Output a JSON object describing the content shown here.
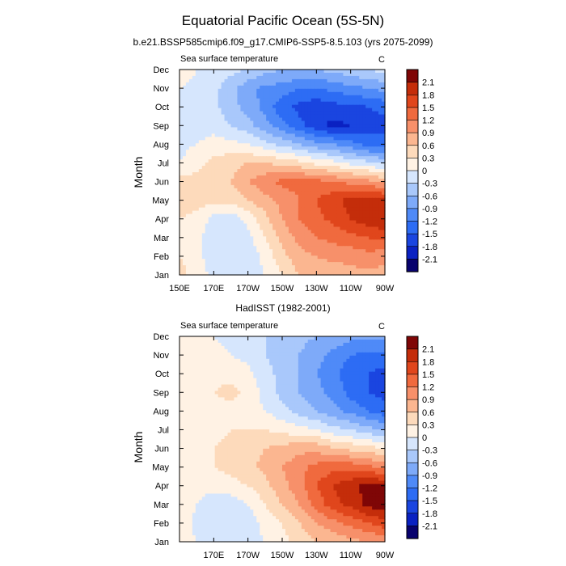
{
  "figure": {
    "title": "Equatorial Pacific Ocean (5S-5N)",
    "subtitle": "b.e21.BSSP585cmip6.f09_g17.CMIP6-SSP5-8.5.103 (yrs 2075-2099)"
  },
  "colors": {
    "palette": [
      "#08026e",
      "#0a21c2",
      "#1a45e0",
      "#2d6cf4",
      "#4f8af8",
      "#7eaaf9",
      "#a9c8fb",
      "#d6e6fd",
      "#fff2e4",
      "#fddabb",
      "#fbb690",
      "#f7906a",
      "#f06a3e",
      "#e0461c",
      "#c42d0a",
      "#7f0606"
    ]
  },
  "chart_data": [
    {
      "type": "heatmap",
      "title": "",
      "left_label": "Sea surface temperature",
      "right_label": "C",
      "xlabel": "",
      "ylabel": "Month",
      "x": [
        150,
        160,
        170,
        180,
        190,
        200,
        210,
        220,
        230,
        240,
        250,
        260,
        270
      ],
      "x_units": "degrees east (0-360)",
      "xticks": [
        {
          "value": 150,
          "label": "150E"
        },
        {
          "value": 170,
          "label": "170E"
        },
        {
          "value": 190,
          "label": "170W"
        },
        {
          "value": 210,
          "label": "150W"
        },
        {
          "value": 230,
          "label": "130W"
        },
        {
          "value": 250,
          "label": "110W"
        },
        {
          "value": 270,
          "label": "90W"
        }
      ],
      "xlim": [
        150,
        270
      ],
      "months": [
        "Jan",
        "Feb",
        "Mar",
        "Apr",
        "May",
        "Jun",
        "Jul",
        "Aug",
        "Sep",
        "Oct",
        "Nov",
        "Dec"
      ],
      "colorbar": {
        "levels": [
          2.1,
          1.8,
          1.5,
          1.2,
          0.9,
          0.6,
          0.3,
          0,
          -0.3,
          -0.6,
          -0.9,
          -1.2,
          -1.5,
          -1.8,
          -2.1
        ],
        "range": [
          -2.4,
          2.4
        ]
      },
      "values": [
        [
          0.4,
          0.2,
          -0.1,
          -0.2,
          -0.2,
          0.0,
          0.3,
          0.6,
          0.7,
          0.7,
          0.8,
          0.8,
          0.8
        ],
        [
          0.3,
          0.1,
          -0.2,
          -0.3,
          -0.2,
          0.1,
          0.5,
          0.8,
          0.9,
          1.0,
          1.0,
          1.1,
          1.0
        ],
        [
          0.3,
          0.1,
          -0.2,
          -0.3,
          -0.1,
          0.3,
          0.7,
          1.0,
          1.2,
          1.3,
          1.4,
          1.5,
          1.6
        ],
        [
          0.3,
          0.2,
          -0.1,
          -0.2,
          0.1,
          0.5,
          0.9,
          1.2,
          1.4,
          1.6,
          1.8,
          2.0,
          2.1
        ],
        [
          0.5,
          0.4,
          0.4,
          0.4,
          0.6,
          0.8,
          1.0,
          1.2,
          1.5,
          1.7,
          1.9,
          2.0,
          1.9
        ],
        [
          0.4,
          0.4,
          0.5,
          0.6,
          0.9,
          1.1,
          1.3,
          1.3,
          1.3,
          1.2,
          1.1,
          1.0,
          0.8
        ],
        [
          0.0,
          0.2,
          0.4,
          0.5,
          0.6,
          0.6,
          0.5,
          0.4,
          0.2,
          0.1,
          -0.1,
          -0.2,
          -0.4
        ],
        [
          -0.1,
          0.0,
          0.1,
          0.1,
          0.0,
          -0.2,
          -0.4,
          -0.6,
          -0.8,
          -0.9,
          -1.1,
          -1.3,
          -1.4
        ],
        [
          0.0,
          -0.1,
          -0.1,
          -0.3,
          -0.5,
          -0.8,
          -1.1,
          -1.4,
          -1.7,
          -1.9,
          -1.8,
          -1.7,
          -1.6
        ],
        [
          0.0,
          -0.1,
          -0.2,
          -0.5,
          -0.7,
          -1.0,
          -1.4,
          -1.6,
          -1.7,
          -1.6,
          -1.6,
          -1.5,
          -1.4
        ],
        [
          0.0,
          -0.1,
          -0.2,
          -0.5,
          -0.8,
          -1.0,
          -1.0,
          -1.2,
          -1.2,
          -1.1,
          -1.0,
          -0.9,
          -0.8
        ],
        [
          0.2,
          0.0,
          -0.1,
          -0.2,
          -0.3,
          -0.5,
          -0.6,
          -0.6,
          -0.6,
          -0.5,
          -0.4,
          -0.3,
          -0.2
        ]
      ]
    },
    {
      "type": "heatmap",
      "title": "HadISST (1982-2001)",
      "left_label": "Sea surface temperature",
      "right_label": "C",
      "xlabel": "",
      "ylabel": "Month",
      "x": [
        150,
        160,
        170,
        180,
        190,
        200,
        210,
        220,
        230,
        240,
        250,
        260,
        270
      ],
      "x_units": "degrees east (0-360)",
      "xticks": [
        {
          "value": 150,
          "label": ""
        },
        {
          "value": 170,
          "label": "170E"
        },
        {
          "value": 190,
          "label": "170W"
        },
        {
          "value": 210,
          "label": "150W"
        },
        {
          "value": 230,
          "label": "130W"
        },
        {
          "value": 250,
          "label": "110W"
        },
        {
          "value": 270,
          "label": "90W"
        }
      ],
      "xlim": [
        150,
        270
      ],
      "months": [
        "Jan",
        "Feb",
        "Mar",
        "Apr",
        "May",
        "Jun",
        "Jul",
        "Aug",
        "Sep",
        "Oct",
        "Nov",
        "Dec"
      ],
      "colorbar": {
        "levels": [
          2.1,
          1.8,
          1.5,
          1.2,
          0.9,
          0.6,
          0.3,
          0,
          -0.3,
          -0.6,
          -0.9,
          -1.2,
          -1.5,
          -1.8,
          -2.1
        ],
        "range": [
          -2.4,
          2.4
        ]
      },
      "values": [
        [
          0.2,
          0.0,
          -0.2,
          -0.2,
          -0.1,
          0.0,
          0.2,
          0.4,
          0.6,
          0.7,
          0.8,
          0.9,
          0.9
        ],
        [
          0.2,
          -0.1,
          -0.3,
          -0.3,
          -0.2,
          0.1,
          0.3,
          0.6,
          0.9,
          1.1,
          1.3,
          1.5,
          1.7
        ],
        [
          0.2,
          0.0,
          -0.2,
          -0.2,
          0.0,
          0.3,
          0.6,
          0.9,
          1.3,
          1.7,
          1.9,
          2.2,
          2.3
        ],
        [
          0.2,
          0.1,
          0.1,
          0.2,
          0.3,
          0.5,
          0.8,
          1.1,
          1.5,
          1.8,
          2.0,
          2.2,
          2.1
        ],
        [
          0.2,
          0.2,
          0.3,
          0.4,
          0.5,
          0.7,
          0.9,
          1.1,
          1.3,
          1.4,
          1.4,
          1.3,
          1.1
        ],
        [
          0.2,
          0.2,
          0.3,
          0.4,
          0.5,
          0.6,
          0.7,
          0.8,
          0.8,
          0.6,
          0.5,
          0.4,
          0.3
        ],
        [
          0.2,
          0.2,
          0.2,
          0.3,
          0.3,
          0.3,
          0.2,
          0.1,
          0.0,
          -0.2,
          -0.3,
          -0.5,
          -0.6
        ],
        [
          0.1,
          0.2,
          0.2,
          0.2,
          0.1,
          0.0,
          -0.2,
          -0.4,
          -0.6,
          -0.8,
          -1.0,
          -1.2,
          -1.4
        ],
        [
          0.1,
          0.2,
          0.3,
          0.4,
          0.2,
          -0.1,
          -0.4,
          -0.6,
          -0.8,
          -1.0,
          -1.3,
          -1.5,
          -1.6
        ],
        [
          0.1,
          0.2,
          0.2,
          0.2,
          0.1,
          -0.2,
          -0.4,
          -0.6,
          -0.9,
          -1.1,
          -1.4,
          -1.5,
          -1.6
        ],
        [
          0.1,
          0.1,
          0.1,
          0.0,
          -0.1,
          -0.3,
          -0.4,
          -0.6,
          -0.8,
          -1.0,
          -1.2,
          -1.3,
          -1.3
        ],
        [
          0.1,
          0.1,
          0.0,
          -0.1,
          -0.2,
          -0.3,
          -0.4,
          -0.5,
          -0.6,
          -0.7,
          -0.8,
          -0.8,
          -0.8
        ]
      ]
    }
  ]
}
